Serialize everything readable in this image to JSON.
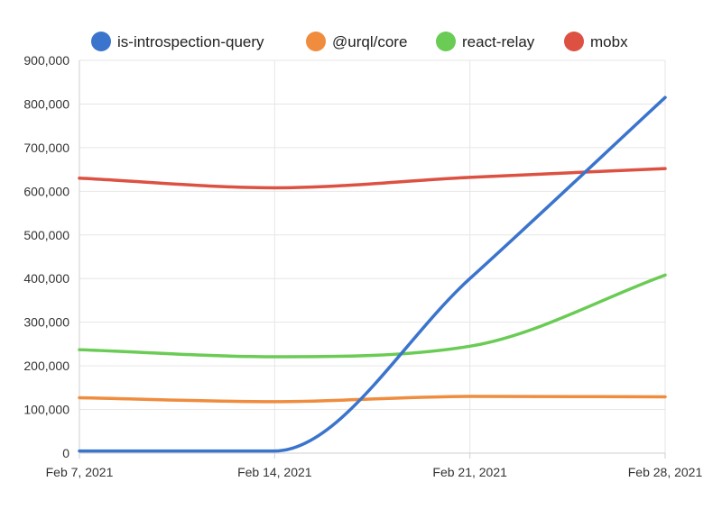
{
  "chart_data": {
    "type": "line",
    "x": [
      "Feb 7, 2021",
      "Feb 14, 2021",
      "Feb 21, 2021",
      "Feb 28, 2021"
    ],
    "series": [
      {
        "name": "is-introspection-query",
        "color": "#3a74cc",
        "values": [
          5000,
          5000,
          400000,
          815000
        ]
      },
      {
        "name": "@urql/core",
        "color": "#ef8c3e",
        "values": [
          127000,
          118000,
          130000,
          129000
        ]
      },
      {
        "name": "react-relay",
        "color": "#6acb55",
        "values": [
          237000,
          221000,
          245000,
          408000
        ]
      },
      {
        "name": "mobx",
        "color": "#dc5142",
        "values": [
          630000,
          608000,
          632000,
          652000
        ]
      }
    ],
    "ylim": [
      0,
      900000
    ],
    "yticks": [
      0,
      100000,
      200000,
      300000,
      400000,
      500000,
      600000,
      700000,
      800000,
      900000
    ],
    "ytick_labels": [
      "0",
      "100,000",
      "200,000",
      "300,000",
      "400,000",
      "500,000",
      "600,000",
      "700,000",
      "800,000",
      "900,000"
    ],
    "grid": true,
    "legend_position": "top",
    "title": "",
    "xlabel": "",
    "ylabel": ""
  }
}
